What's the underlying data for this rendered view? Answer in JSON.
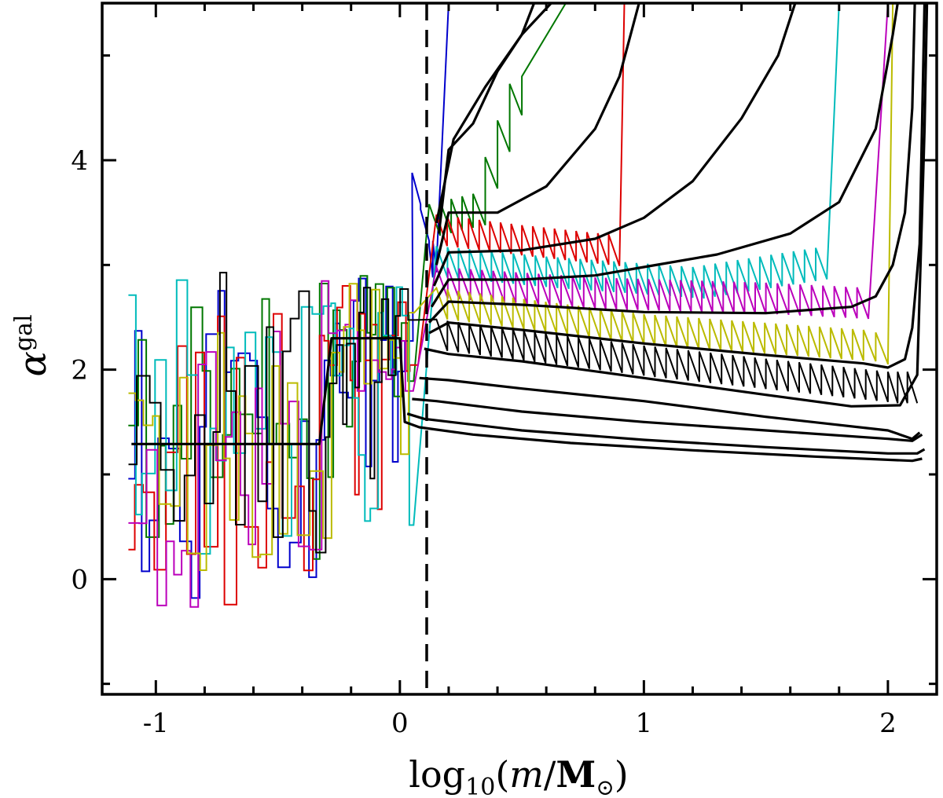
{
  "chart_data": {
    "type": "line",
    "title": "",
    "xlabel": {
      "prefix": "log",
      "sub": "10",
      "open": "(",
      "var": "m",
      "slash": "/",
      "unit": "M",
      "sun": "⊙",
      "close": ")"
    },
    "ylabel": {
      "sym": "α",
      "sup": "gal"
    },
    "xlim": [
      -1.22,
      2.2
    ],
    "ylim": [
      -1.1,
      5.5
    ],
    "x_ticks": [
      -1,
      0,
      1,
      2
    ],
    "x_tick_labels": [
      "-1",
      "0",
      "1",
      "2"
    ],
    "y_ticks": [
      0,
      2,
      4
    ],
    "y_tick_labels": [
      "0",
      "2",
      "4"
    ],
    "grid": false,
    "legend": "none",
    "vline": {
      "x": 0.11,
      "style": "dashed"
    },
    "colors": [
      "#0000cc",
      "#007700",
      "#dd0000",
      "#00bbbb",
      "#bb00bb",
      "#bbbb00",
      "#000000"
    ],
    "black_curves": [
      {
        "plateau": [
          [
            -1.1,
            1.29
          ],
          [
            -0.33,
            1.29
          ],
          [
            -0.28,
            2.3
          ],
          [
            0.0,
            2.3
          ]
        ],
        "points": [
          [
            0.02,
            1.5
          ],
          [
            0.08,
            1.45
          ],
          [
            0.3,
            1.38
          ],
          [
            0.7,
            1.3
          ],
          [
            1.2,
            1.23
          ],
          [
            1.7,
            1.17
          ],
          [
            2.1,
            1.13
          ],
          [
            2.14,
            1.15
          ]
        ]
      },
      {
        "points": [
          [
            0.03,
            1.58
          ],
          [
            0.1,
            1.53
          ],
          [
            0.5,
            1.42
          ],
          [
            1.0,
            1.33
          ],
          [
            1.5,
            1.26
          ],
          [
            2.0,
            1.2
          ],
          [
            2.12,
            1.2
          ],
          [
            2.15,
            1.24
          ]
        ]
      },
      {
        "points": [
          [
            0.05,
            1.72
          ],
          [
            0.15,
            1.7
          ],
          [
            0.5,
            1.6
          ],
          [
            1.0,
            1.5
          ],
          [
            1.5,
            1.42
          ],
          [
            2.0,
            1.34
          ],
          [
            2.1,
            1.32
          ],
          [
            2.14,
            1.38
          ]
        ]
      },
      {
        "points": [
          [
            0.08,
            1.92
          ],
          [
            0.2,
            1.9
          ],
          [
            0.5,
            1.82
          ],
          [
            1.0,
            1.7
          ],
          [
            1.5,
            1.55
          ],
          [
            2.0,
            1.42
          ],
          [
            2.1,
            1.34
          ],
          [
            2.13,
            1.4
          ]
        ]
      },
      {
        "points": [
          [
            0.1,
            2.2
          ],
          [
            0.2,
            2.15
          ],
          [
            0.5,
            2.08
          ],
          [
            1.0,
            1.92
          ],
          [
            1.5,
            1.76
          ],
          [
            1.85,
            1.65
          ],
          [
            2.05,
            1.66
          ],
          [
            2.12,
            1.95
          ],
          [
            2.15,
            4.3
          ],
          [
            2.16,
            5.5
          ]
        ]
      },
      {
        "points": [
          [
            0.12,
            2.35
          ],
          [
            0.2,
            2.45
          ],
          [
            0.5,
            2.38
          ],
          [
            1.0,
            2.25
          ],
          [
            1.5,
            2.14
          ],
          [
            1.9,
            2.06
          ],
          [
            2.0,
            2.02
          ],
          [
            2.07,
            2.1
          ],
          [
            2.1,
            2.4
          ],
          [
            2.13,
            3.2
          ],
          [
            2.15,
            5.5
          ]
        ]
      },
      {
        "points": [
          [
            0.12,
            2.45
          ],
          [
            0.2,
            2.65
          ],
          [
            0.5,
            2.62
          ],
          [
            1.0,
            2.55
          ],
          [
            1.5,
            2.54
          ],
          [
            1.85,
            2.6
          ],
          [
            1.95,
            2.7
          ],
          [
            2.02,
            3.0
          ],
          [
            2.07,
            3.5
          ],
          [
            2.1,
            4.5
          ],
          [
            2.11,
            5.5
          ]
        ]
      },
      {
        "points": [
          [
            0.13,
            2.6
          ],
          [
            0.2,
            2.86
          ],
          [
            0.5,
            2.86
          ],
          [
            0.8,
            2.9
          ],
          [
            1.0,
            2.98
          ],
          [
            1.3,
            3.1
          ],
          [
            1.6,
            3.3
          ],
          [
            1.8,
            3.6
          ],
          [
            1.95,
            4.3
          ],
          [
            2.02,
            5.2
          ],
          [
            2.04,
            5.5
          ]
        ]
      },
      {
        "points": [
          [
            0.14,
            2.8
          ],
          [
            0.2,
            3.12
          ],
          [
            0.5,
            3.14
          ],
          [
            0.8,
            3.25
          ],
          [
            1.0,
            3.45
          ],
          [
            1.2,
            3.8
          ],
          [
            1.4,
            4.4
          ],
          [
            1.55,
            5.0
          ],
          [
            1.62,
            5.5
          ]
        ]
      },
      {
        "points": [
          [
            0.15,
            3.0
          ],
          [
            0.2,
            3.5
          ],
          [
            0.4,
            3.5
          ],
          [
            0.6,
            3.75
          ],
          [
            0.8,
            4.3
          ],
          [
            0.9,
            4.8
          ],
          [
            0.98,
            5.5
          ]
        ]
      },
      {
        "points": [
          [
            0.16,
            3.3
          ],
          [
            0.2,
            4.1
          ],
          [
            0.3,
            4.35
          ],
          [
            0.4,
            4.85
          ],
          [
            0.5,
            5.2
          ],
          [
            0.62,
            5.5
          ]
        ]
      },
      {
        "points": [
          [
            0.15,
            3.4
          ],
          [
            0.22,
            4.2
          ],
          [
            0.35,
            4.7
          ],
          [
            0.5,
            5.2
          ],
          [
            0.55,
            5.5
          ]
        ]
      }
    ],
    "colored_steps": [
      {
        "color": "#0000cc",
        "seed": 11,
        "right": [
          [
            0.05,
            3.6
          ],
          [
            0.12,
            2.9
          ],
          [
            0.15,
            3.0
          ],
          [
            0.2,
            5.5
          ]
        ]
      },
      {
        "color": "#007700",
        "seed": 23,
        "right": [
          [
            0.12,
            3.3
          ],
          [
            0.3,
            3.4
          ],
          [
            0.5,
            4.8
          ],
          [
            0.68,
            5.5
          ]
        ]
      },
      {
        "color": "#dd0000",
        "seed": 37,
        "right": [
          [
            0.15,
            3.2
          ],
          [
            0.5,
            3.1
          ],
          [
            0.9,
            3.0
          ],
          [
            0.92,
            5.5
          ]
        ]
      },
      {
        "color": "#00bbbb",
        "seed": 41,
        "right": [
          [
            0.15,
            2.9
          ],
          [
            0.6,
            2.8
          ],
          [
            1.2,
            2.7
          ],
          [
            1.75,
            2.9
          ],
          [
            1.8,
            5.5
          ]
        ]
      },
      {
        "color": "#bb00bb",
        "seed": 53,
        "right": [
          [
            0.15,
            2.7
          ],
          [
            0.8,
            2.6
          ],
          [
            1.5,
            2.55
          ],
          [
            1.92,
            2.5
          ],
          [
            2.0,
            5.5
          ]
        ]
      },
      {
        "color": "#bbbb00",
        "seed": 67,
        "right": [
          [
            0.15,
            2.5
          ],
          [
            1.0,
            2.25
          ],
          [
            1.9,
            2.1
          ],
          [
            2.0,
            2.05
          ],
          [
            2.02,
            5.5
          ]
        ]
      },
      {
        "color": "#000000",
        "seed": 71,
        "right": [
          [
            0.15,
            2.2
          ],
          [
            1.0,
            1.95
          ],
          [
            2.0,
            1.7
          ],
          [
            2.12,
            1.7
          ]
        ]
      }
    ]
  }
}
